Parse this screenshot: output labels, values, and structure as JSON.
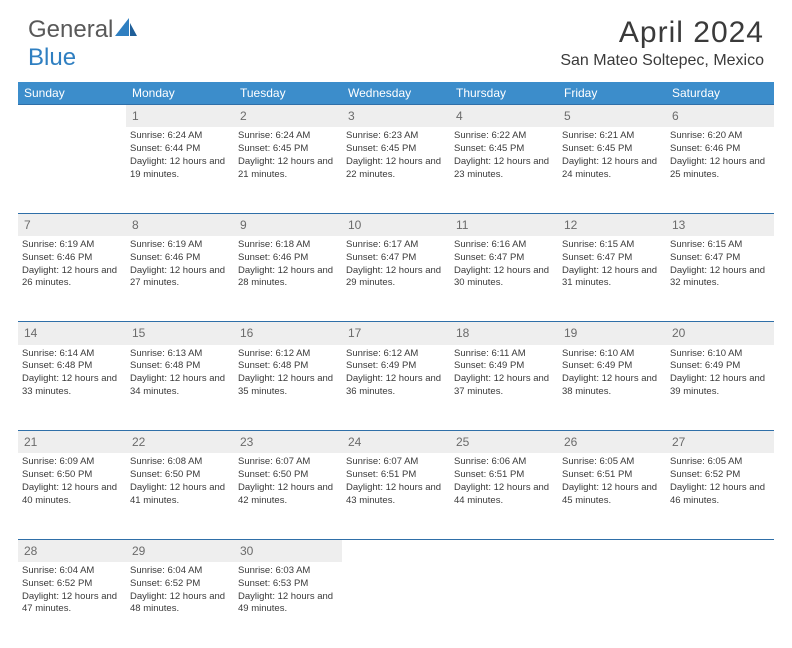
{
  "brand": {
    "part1": "General",
    "part2": "Blue"
  },
  "title": "April 2024",
  "location": "San Mateo Soltepec, Mexico",
  "colors": {
    "header_bg": "#3c8dcb",
    "header_text": "#ffffff",
    "daynum_bg": "#eeeeee",
    "body_text": "#3a3a3a",
    "border": "#2f6fa8",
    "brand_gray": "#595959",
    "brand_blue": "#2f7fc1"
  },
  "weekdays": [
    "Sunday",
    "Monday",
    "Tuesday",
    "Wednesday",
    "Thursday",
    "Friday",
    "Saturday"
  ],
  "weeks": [
    {
      "numbers": [
        "",
        "1",
        "2",
        "3",
        "4",
        "5",
        "6"
      ],
      "cells": [
        null,
        {
          "sunrise": "Sunrise: 6:24 AM",
          "sunset": "Sunset: 6:44 PM",
          "daylight": "Daylight: 12 hours and 19 minutes."
        },
        {
          "sunrise": "Sunrise: 6:24 AM",
          "sunset": "Sunset: 6:45 PM",
          "daylight": "Daylight: 12 hours and 21 minutes."
        },
        {
          "sunrise": "Sunrise: 6:23 AM",
          "sunset": "Sunset: 6:45 PM",
          "daylight": "Daylight: 12 hours and 22 minutes."
        },
        {
          "sunrise": "Sunrise: 6:22 AM",
          "sunset": "Sunset: 6:45 PM",
          "daylight": "Daylight: 12 hours and 23 minutes."
        },
        {
          "sunrise": "Sunrise: 6:21 AM",
          "sunset": "Sunset: 6:45 PM",
          "daylight": "Daylight: 12 hours and 24 minutes."
        },
        {
          "sunrise": "Sunrise: 6:20 AM",
          "sunset": "Sunset: 6:46 PM",
          "daylight": "Daylight: 12 hours and 25 minutes."
        }
      ]
    },
    {
      "numbers": [
        "7",
        "8",
        "9",
        "10",
        "11",
        "12",
        "13"
      ],
      "cells": [
        {
          "sunrise": "Sunrise: 6:19 AM",
          "sunset": "Sunset: 6:46 PM",
          "daylight": "Daylight: 12 hours and 26 minutes."
        },
        {
          "sunrise": "Sunrise: 6:19 AM",
          "sunset": "Sunset: 6:46 PM",
          "daylight": "Daylight: 12 hours and 27 minutes."
        },
        {
          "sunrise": "Sunrise: 6:18 AM",
          "sunset": "Sunset: 6:46 PM",
          "daylight": "Daylight: 12 hours and 28 minutes."
        },
        {
          "sunrise": "Sunrise: 6:17 AM",
          "sunset": "Sunset: 6:47 PM",
          "daylight": "Daylight: 12 hours and 29 minutes."
        },
        {
          "sunrise": "Sunrise: 6:16 AM",
          "sunset": "Sunset: 6:47 PM",
          "daylight": "Daylight: 12 hours and 30 minutes."
        },
        {
          "sunrise": "Sunrise: 6:15 AM",
          "sunset": "Sunset: 6:47 PM",
          "daylight": "Daylight: 12 hours and 31 minutes."
        },
        {
          "sunrise": "Sunrise: 6:15 AM",
          "sunset": "Sunset: 6:47 PM",
          "daylight": "Daylight: 12 hours and 32 minutes."
        }
      ]
    },
    {
      "numbers": [
        "14",
        "15",
        "16",
        "17",
        "18",
        "19",
        "20"
      ],
      "cells": [
        {
          "sunrise": "Sunrise: 6:14 AM",
          "sunset": "Sunset: 6:48 PM",
          "daylight": "Daylight: 12 hours and 33 minutes."
        },
        {
          "sunrise": "Sunrise: 6:13 AM",
          "sunset": "Sunset: 6:48 PM",
          "daylight": "Daylight: 12 hours and 34 minutes."
        },
        {
          "sunrise": "Sunrise: 6:12 AM",
          "sunset": "Sunset: 6:48 PM",
          "daylight": "Daylight: 12 hours and 35 minutes."
        },
        {
          "sunrise": "Sunrise: 6:12 AM",
          "sunset": "Sunset: 6:49 PM",
          "daylight": "Daylight: 12 hours and 36 minutes."
        },
        {
          "sunrise": "Sunrise: 6:11 AM",
          "sunset": "Sunset: 6:49 PM",
          "daylight": "Daylight: 12 hours and 37 minutes."
        },
        {
          "sunrise": "Sunrise: 6:10 AM",
          "sunset": "Sunset: 6:49 PM",
          "daylight": "Daylight: 12 hours and 38 minutes."
        },
        {
          "sunrise": "Sunrise: 6:10 AM",
          "sunset": "Sunset: 6:49 PM",
          "daylight": "Daylight: 12 hours and 39 minutes."
        }
      ]
    },
    {
      "numbers": [
        "21",
        "22",
        "23",
        "24",
        "25",
        "26",
        "27"
      ],
      "cells": [
        {
          "sunrise": "Sunrise: 6:09 AM",
          "sunset": "Sunset: 6:50 PM",
          "daylight": "Daylight: 12 hours and 40 minutes."
        },
        {
          "sunrise": "Sunrise: 6:08 AM",
          "sunset": "Sunset: 6:50 PM",
          "daylight": "Daylight: 12 hours and 41 minutes."
        },
        {
          "sunrise": "Sunrise: 6:07 AM",
          "sunset": "Sunset: 6:50 PM",
          "daylight": "Daylight: 12 hours and 42 minutes."
        },
        {
          "sunrise": "Sunrise: 6:07 AM",
          "sunset": "Sunset: 6:51 PM",
          "daylight": "Daylight: 12 hours and 43 minutes."
        },
        {
          "sunrise": "Sunrise: 6:06 AM",
          "sunset": "Sunset: 6:51 PM",
          "daylight": "Daylight: 12 hours and 44 minutes."
        },
        {
          "sunrise": "Sunrise: 6:05 AM",
          "sunset": "Sunset: 6:51 PM",
          "daylight": "Daylight: 12 hours and 45 minutes."
        },
        {
          "sunrise": "Sunrise: 6:05 AM",
          "sunset": "Sunset: 6:52 PM",
          "daylight": "Daylight: 12 hours and 46 minutes."
        }
      ]
    },
    {
      "numbers": [
        "28",
        "29",
        "30",
        "",
        "",
        "",
        ""
      ],
      "cells": [
        {
          "sunrise": "Sunrise: 6:04 AM",
          "sunset": "Sunset: 6:52 PM",
          "daylight": "Daylight: 12 hours and 47 minutes."
        },
        {
          "sunrise": "Sunrise: 6:04 AM",
          "sunset": "Sunset: 6:52 PM",
          "daylight": "Daylight: 12 hours and 48 minutes."
        },
        {
          "sunrise": "Sunrise: 6:03 AM",
          "sunset": "Sunset: 6:53 PM",
          "daylight": "Daylight: 12 hours and 49 minutes."
        },
        null,
        null,
        null,
        null
      ]
    }
  ]
}
